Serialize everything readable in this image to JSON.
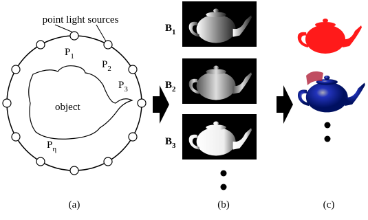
{
  "panel_a": {
    "heading": "point light sources",
    "object_label": "object",
    "caption": "(a)",
    "points": [
      {
        "base": "P",
        "sub": "1"
      },
      {
        "base": "P",
        "sub": "2"
      },
      {
        "base": "P",
        "sub": "3"
      },
      {
        "base": "P",
        "sub": "η"
      }
    ]
  },
  "panel_b": {
    "caption": "(b)",
    "images": [
      {
        "base": "B",
        "sub": "1"
      },
      {
        "base": "B",
        "sub": "2"
      },
      {
        "base": "B",
        "sub": "3"
      }
    ]
  },
  "panel_c": {
    "caption": "(c)"
  }
}
